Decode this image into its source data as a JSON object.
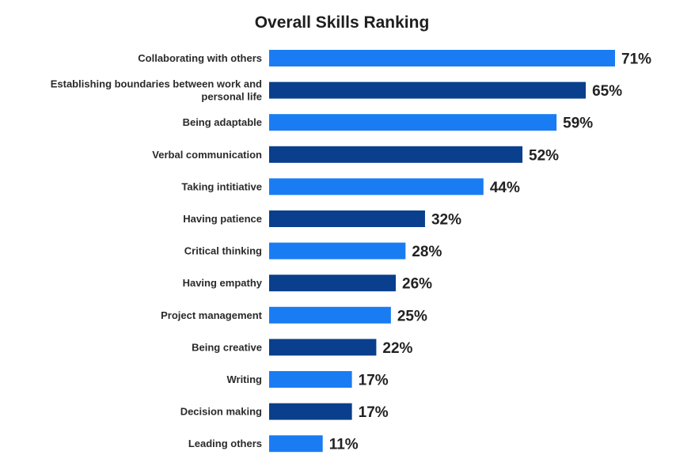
{
  "chart_data": {
    "type": "bar",
    "orientation": "horizontal",
    "title": "Overall Skills Ranking",
    "xlabel": "",
    "ylabel": "",
    "xlim": [
      0,
      71
    ],
    "grid": false,
    "legend": "none",
    "value_suffix": "%",
    "categories": [
      "Collaborating with others",
      "Establishing boundaries between work and personal life",
      "Being adaptable",
      "Verbal communication",
      "Taking intitiative",
      "Having patience",
      "Critical thinking",
      "Having empathy",
      "Project management",
      "Being creative",
      "Writing",
      "Decision making",
      "Leading others"
    ],
    "values": [
      71,
      65,
      59,
      52,
      44,
      32,
      28,
      26,
      25,
      22,
      17,
      17,
      11
    ],
    "value_labels": [
      "71%",
      "65%",
      "59%",
      "52%",
      "44%",
      "32%",
      "28%",
      "26%",
      "25%",
      "22%",
      "17%",
      "17%",
      "11%"
    ],
    "colors": {
      "light_bar": "#1a7cf2",
      "dark_bar": "#093f8c",
      "pattern": "alternating, starting with light_bar"
    }
  }
}
